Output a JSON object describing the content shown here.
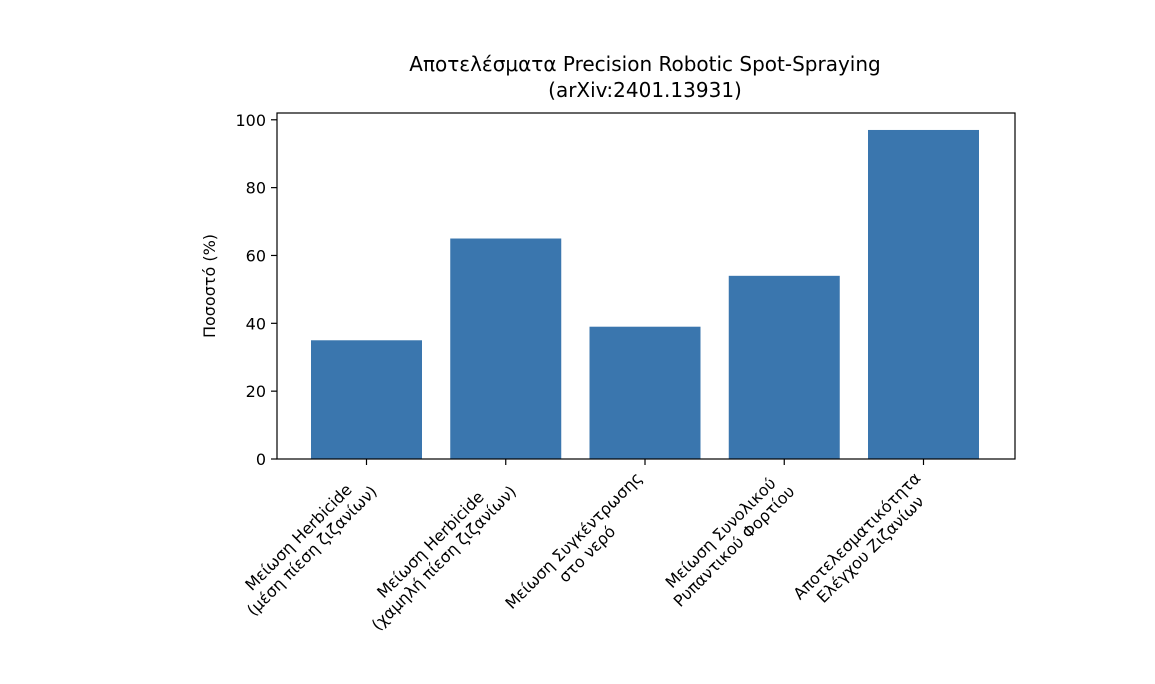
{
  "chart_data": {
    "type": "bar",
    "title_lines": [
      "Αποτελέσματα Precision Robotic Spot-Spraying",
      "(arXiv:2401.13931)"
    ],
    "xlabel": "",
    "ylabel": "Ποσοστό (%)",
    "categories": [
      [
        "Μείωση Herbicide",
        "(μέση πίεση ζιζανίων)"
      ],
      [
        "Μείωση Herbicide",
        "(χαμηλή πίεση ζιζανίων)"
      ],
      [
        "Μείωση Συγκέντρωσης",
        "στο νερό"
      ],
      [
        "Μείωση Συνολικού",
        "Ρυπαντικού Φορτίου"
      ],
      [
        "Αποτελεσματικότητα",
        "Ελέγχου Ζιζανίων"
      ]
    ],
    "values": [
      35,
      65,
      39,
      54,
      97
    ],
    "ylim": [
      0,
      102
    ],
    "yticks": [
      0,
      20,
      40,
      60,
      80,
      100
    ],
    "bar_color": "#3a76ae",
    "grid": false,
    "legend": "none"
  }
}
